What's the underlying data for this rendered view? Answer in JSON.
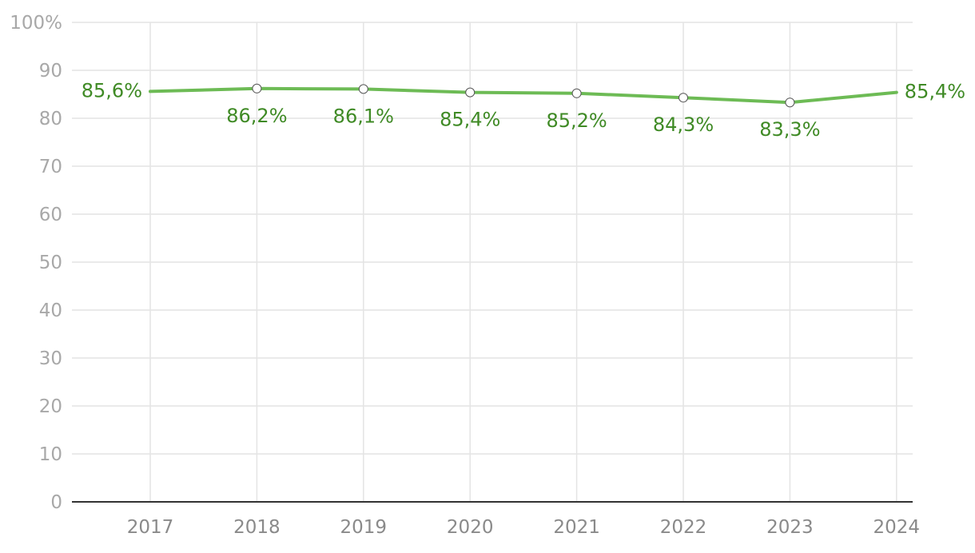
{
  "chart_data": {
    "type": "line",
    "categories": [
      "2017",
      "2018",
      "2019",
      "2020",
      "2021",
      "2022",
      "2023",
      "2024"
    ],
    "series": [
      {
        "values": [
          85.6,
          86.2,
          86.1,
          85.4,
          85.2,
          84.3,
          83.3,
          85.4
        ],
        "labels": [
          "85,6%",
          "86,2%",
          "86,1%",
          "85,4%",
          "85,2%",
          "84,3%",
          "83,3%",
          "85,4%"
        ],
        "color": "#6dbb55",
        "label_color": "#3f8a25"
      }
    ],
    "ylim": [
      0,
      100
    ],
    "yticks": [
      0,
      10,
      20,
      30,
      40,
      50,
      60,
      70,
      80,
      90,
      100
    ],
    "ytick_labels": [
      "0",
      "10",
      "20",
      "30",
      "40",
      "50",
      "60",
      "70",
      "80",
      "90",
      "100%"
    ],
    "grid": true,
    "legend": "none"
  }
}
